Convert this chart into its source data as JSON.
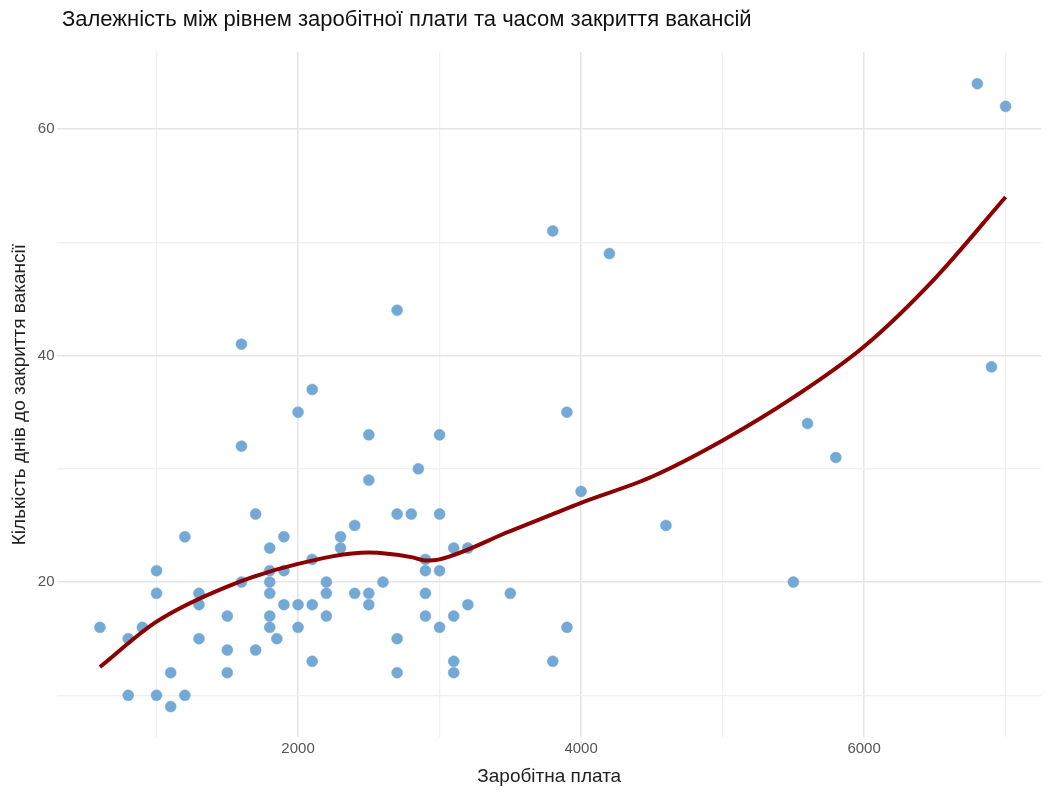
{
  "chart_data": {
    "type": "scatter",
    "title": "Залежність між рівнем заробітної плати та часом закриття вакансій",
    "xlabel": "Заробітна плата",
    "ylabel": "Кількість днів до закриття вакансії",
    "xlim": [
      300,
      7250
    ],
    "ylim": [
      6.3,
      66.8
    ],
    "xticks": [
      {
        "value": 1000,
        "label": null
      },
      2000,
      {
        "value": 3000,
        "label": null
      },
      4000,
      {
        "value": 5000,
        "label": null
      },
      6000,
      {
        "value": 7000,
        "label": null
      }
    ],
    "yticks": [
      {
        "value": 10,
        "label": null
      },
      20,
      {
        "value": 30,
        "label": null
      },
      40,
      {
        "value": 50,
        "label": null
      },
      60
    ],
    "grid": true,
    "legend": false,
    "marker": "circle",
    "series": [
      {
        "color": "#73a9d4",
        "x": [
          600,
          800,
          800,
          900,
          1000,
          1000,
          1000,
          1100,
          1100,
          1200,
          1200,
          1300,
          1300,
          1300,
          1500,
          1500,
          1500,
          1600,
          1600,
          1600,
          1700,
          1700,
          1800,
          1800,
          1800,
          1800,
          1800,
          1800,
          1850,
          1900,
          1900,
          1900,
          2000,
          2000,
          2000,
          2100,
          2100,
          2100,
          2100,
          2200,
          2200,
          2200,
          2300,
          2300,
          2400,
          2400,
          2500,
          2500,
          2500,
          2500,
          2600,
          2700,
          2700,
          2700,
          2700,
          2800,
          2850,
          2900,
          2900,
          2900,
          2900,
          3000,
          3000,
          3000,
          3000,
          3100,
          3100,
          3100,
          3100,
          3200,
          3200,
          3500,
          3800,
          3800,
          3900,
          3900,
          4000,
          4200,
          4600,
          5500,
          5600,
          5800,
          6800,
          6900,
          7000
        ],
        "values": [
          16,
          10,
          15,
          16,
          21,
          19,
          10,
          9,
          12,
          24,
          10,
          19,
          18,
          15,
          17,
          14,
          12,
          41,
          32,
          20,
          26,
          14,
          23,
          21,
          20,
          19,
          17,
          16,
          15,
          24,
          21,
          18,
          35,
          18,
          16,
          37,
          22,
          18,
          13,
          20,
          19,
          17,
          24,
          23,
          25,
          19,
          33,
          29,
          19,
          18,
          20,
          44,
          26,
          15,
          12,
          26,
          30,
          22,
          21,
          19,
          17,
          33,
          26,
          21,
          16,
          23,
          17,
          13,
          12,
          23,
          18,
          19,
          51,
          13,
          35,
          16,
          28,
          49,
          25,
          20,
          34,
          31,
          64,
          39,
          62
        ]
      },
      {
        "type": "line",
        "color": "#8b0000",
        "marker": "none",
        "line_style": "solid",
        "x": [
          600,
          1000,
          1500,
          2000,
          2500,
          2800,
          2900,
          3000,
          3500,
          3800,
          4000,
          4500,
          5000,
          5500,
          6000,
          6500,
          7000
        ],
        "values": [
          12.5,
          16.5,
          19.6,
          21.6,
          22.6,
          22.2,
          21.9,
          22.0,
          24.5,
          26.0,
          27.0,
          29.3,
          32.5,
          36.3,
          40.8,
          46.8,
          54.0
        ]
      }
    ]
  }
}
